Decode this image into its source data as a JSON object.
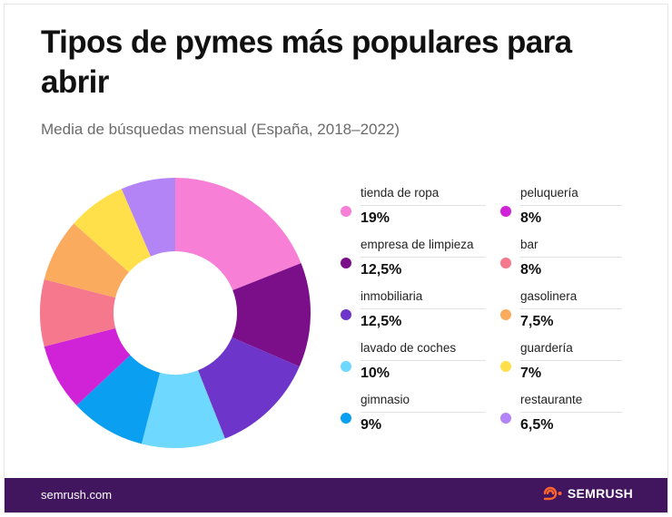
{
  "title": "Tipos de pymes más populares para abrir",
  "subtitle": "Media de búsquedas mensual (España, 2018–2022)",
  "chart_data": {
    "type": "pie",
    "variant": "donut",
    "title": "Tipos de pymes más populares para abrir",
    "subtitle": "Media de búsquedas mensual (España, 2018–2022)",
    "unit": "%",
    "slices": [
      {
        "label": "tienda de ropa",
        "value": 19,
        "display": "19%",
        "color": "#f77fd5"
      },
      {
        "label": "empresa de limpieza",
        "value": 12.5,
        "display": "12,5%",
        "color": "#7b0f8a"
      },
      {
        "label": "inmobiliaria",
        "value": 12.5,
        "display": "12,5%",
        "color": "#6d35c9"
      },
      {
        "label": "lavado de coches",
        "value": 10,
        "display": "10%",
        "color": "#6ed8ff"
      },
      {
        "label": "gimnasio",
        "value": 9,
        "display": "9%",
        "color": "#0a9ff0"
      },
      {
        "label": "peluquería",
        "value": 8,
        "display": "8%",
        "color": "#d023d8"
      },
      {
        "label": "bar",
        "value": 8,
        "display": "8%",
        "color": "#f5788c"
      },
      {
        "label": "gasolinera",
        "value": 7.5,
        "display": "7,5%",
        "color": "#fbab5e"
      },
      {
        "label": "guardería",
        "value": 7,
        "display": "7%",
        "color": "#ffe04b"
      },
      {
        "label": "restaurante",
        "value": 6.5,
        "display": "6,5%",
        "color": "#b284f5"
      }
    ],
    "legend_position": "right"
  },
  "footer": {
    "site": "semrush.com",
    "brand": "SEMRUSH",
    "background": "#41165f",
    "logo_color": "#ff642d"
  }
}
